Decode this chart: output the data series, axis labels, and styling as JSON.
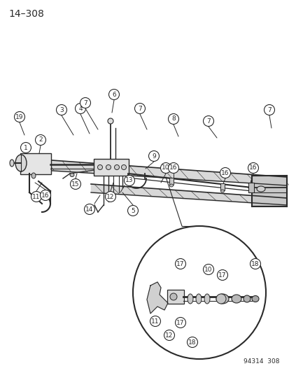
{
  "page_number": "14-308",
  "doc_number": "94314 308",
  "bg": "#ffffff",
  "lc": "#2a2a2a",
  "fig_width": 4.14,
  "fig_height": 5.33,
  "dpi": 100
}
